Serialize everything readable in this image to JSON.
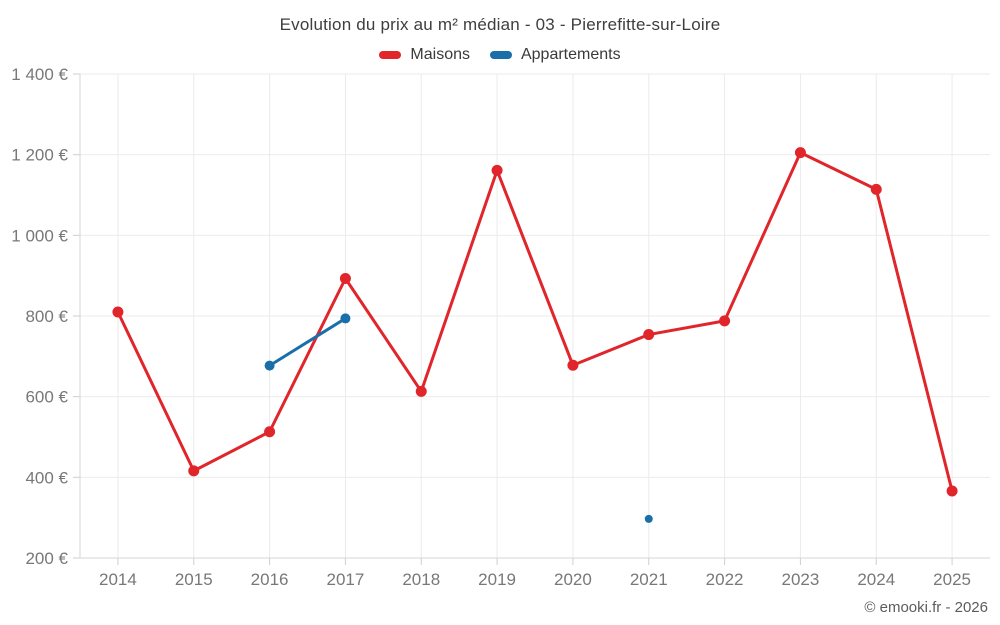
{
  "title": "Evolution du prix au m² médian - 03 - Pierrefitte-sur-Loire",
  "copyright": "© emooki.fr - 2026",
  "colors": {
    "maisons_red": "#e0252b",
    "appartements_blue": "#1a6fa8",
    "gridline": "#ebebeb",
    "axis_line": "#d4d4d4",
    "tick": "#cfcfcf",
    "axis_label": "#77787a"
  },
  "chart_data": {
    "type": "line",
    "title": "Evolution du prix au m² médian - 03 - Pierrefitte-sur-Loire",
    "x": [
      "2014",
      "2015",
      "2016",
      "2017",
      "2018",
      "2019",
      "2020",
      "2021",
      "2022",
      "2023",
      "2024",
      "2025"
    ],
    "series": [
      {
        "name": "Maisons",
        "color": "#e0252b",
        "point_radius": 5.5,
        "values": [
          810,
          416,
          513,
          893,
          613,
          1161,
          678,
          754,
          788,
          1205,
          1114,
          366
        ]
      },
      {
        "name": "Appartements",
        "color": "#1a6fa8",
        "point_radius": 5,
        "values": [
          null,
          null,
          677,
          794,
          null,
          null,
          null,
          297,
          null,
          null,
          null,
          null
        ]
      }
    ],
    "xlabel": "",
    "ylabel": "",
    "ylim": [
      200,
      1400
    ],
    "ytick_step": 200,
    "ytick_labels": [
      "200 €",
      "400 €",
      "600 €",
      "800 €",
      "1 000 €",
      "1 200 €",
      "1 400 €"
    ],
    "grid": true,
    "legend_position": "top"
  }
}
